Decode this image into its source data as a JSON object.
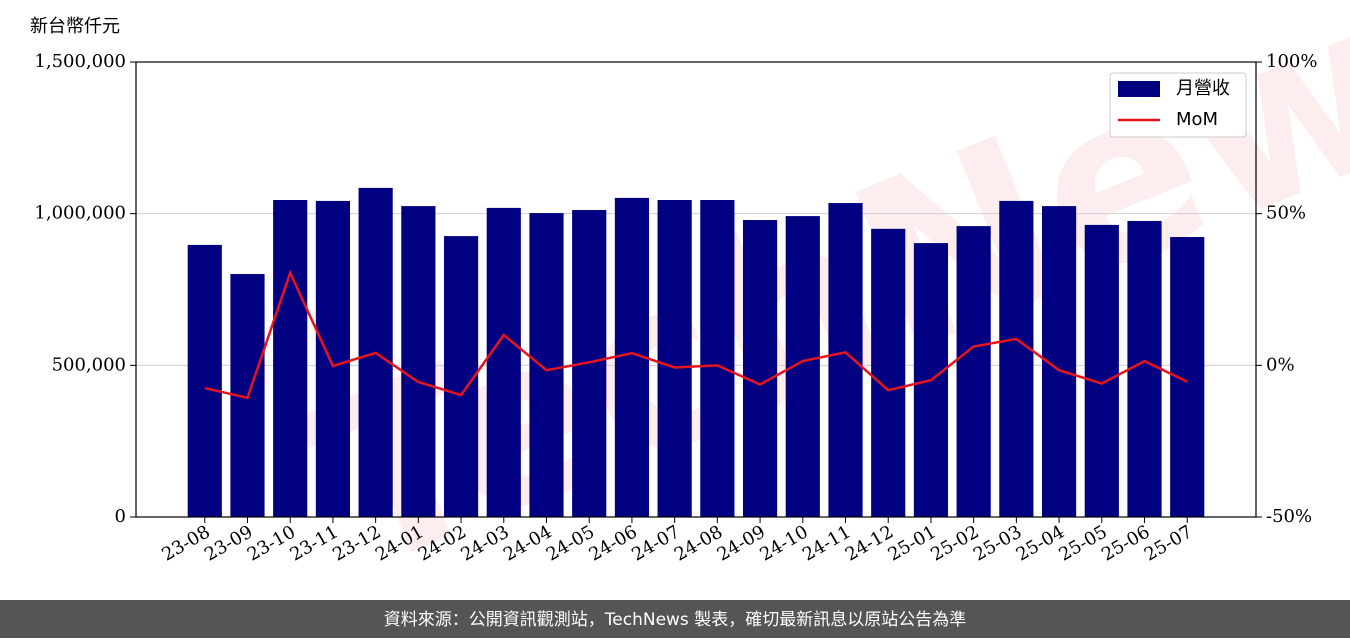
{
  "chart_data": {
    "type": "bar-line",
    "ylabel": "新台幣仟元",
    "watermark": "TechNews",
    "footer": "資料來源：公開資訊觀測站，TechNews 製表，確切最新訊息以原站公告為準",
    "categories": [
      "23-08",
      "23-09",
      "23-10",
      "23-11",
      "23-12",
      "24-01",
      "24-02",
      "24-03",
      "24-04",
      "24-05",
      "24-06",
      "24-07",
      "24-08",
      "24-09",
      "24-10",
      "24-11",
      "24-12",
      "25-01",
      "25-02",
      "25-03",
      "25-04",
      "25-05",
      "25-06",
      "25-07"
    ],
    "series": [
      {
        "name": "月營收",
        "type": "bar",
        "color": "#000080",
        "values": [
          897000,
          801000,
          1045000,
          1042000,
          1085000,
          1025000,
          926000,
          1019000,
          1002000,
          1012000,
          1052000,
          1045000,
          1045000,
          979000,
          992000,
          1035000,
          950000,
          903000,
          959000,
          1042000,
          1025000,
          963000,
          976000,
          923000
        ]
      },
      {
        "name": "MoM",
        "type": "line",
        "axis": "y2",
        "color": "#e8141c",
        "values": [
          -7.5,
          -10.7,
          30.5,
          -0.2,
          4.1,
          -5.5,
          -9.8,
          10.0,
          -1.6,
          1.0,
          4.0,
          -0.7,
          0.0,
          -6.3,
          1.4,
          4.3,
          -8.2,
          -4.9,
          6.2,
          8.7,
          -1.6,
          -6.0,
          1.4,
          -5.4
        ]
      }
    ],
    "ylim": [
      0,
      1500000
    ],
    "yticks": [
      0,
      {
        "value": 500000,
        "label": "500,000"
      },
      {
        "value": 1000000,
        "label": "1,000,000"
      },
      {
        "value": 1500000,
        "label": "1,500,000"
      }
    ],
    "y2lim": [
      -50,
      100
    ],
    "y2ticks": [
      {
        "value": -50,
        "label": "-50%"
      },
      {
        "value": 0,
        "label": "0%"
      },
      {
        "value": 50,
        "label": "50%"
      },
      {
        "value": 100,
        "label": "100%"
      }
    ],
    "grid": true,
    "legend": "upper right"
  }
}
